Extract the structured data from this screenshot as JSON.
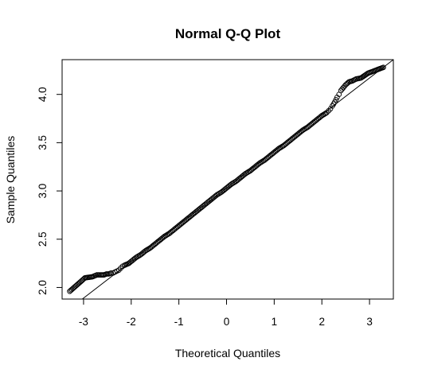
{
  "chart_data": {
    "type": "scatter",
    "title": "Normal Q-Q Plot",
    "xlabel": "Theoretical Quantiles",
    "ylabel": "Sample Quantiles",
    "xlim": [
      -3.45,
      3.5
    ],
    "ylim": [
      1.88,
      4.36
    ],
    "xticks": [
      "-3",
      "-2",
      "-1",
      "0",
      "1",
      "2",
      "3"
    ],
    "yticks": [
      "2.0",
      "2.5",
      "3.0",
      "3.5",
      "4.0"
    ],
    "reference_line": {
      "intercept": 3.03,
      "slope": 0.38
    },
    "n_points": 1000,
    "marker": "open-circle",
    "series": [
      {
        "points": [
          [
            -3.29,
            1.96
          ],
          [
            -2.97,
            2.1
          ],
          [
            -2.82,
            2.11
          ],
          [
            -2.72,
            2.13
          ],
          [
            -2.64,
            2.13
          ],
          [
            -2.57,
            2.13
          ],
          [
            -2.52,
            2.14
          ],
          [
            -2.47,
            2.14
          ],
          [
            -2.42,
            2.15
          ],
          [
            -2.38,
            2.15
          ],
          [
            -2.34,
            2.16
          ],
          [
            -2.3,
            2.17
          ],
          [
            -2.26,
            2.18
          ],
          [
            -2.22,
            2.2
          ],
          [
            -2.18,
            2.22
          ],
          [
            -2.14,
            2.23
          ],
          [
            -2.05,
            2.25
          ],
          [
            -2.0,
            2.27
          ],
          [
            -1.95,
            2.29
          ],
          [
            -1.9,
            2.31
          ],
          [
            -1.8,
            2.34
          ],
          [
            -1.7,
            2.38
          ],
          [
            -1.6,
            2.41
          ],
          [
            -1.5,
            2.45
          ],
          [
            -1.4,
            2.49
          ],
          [
            -1.3,
            2.53
          ],
          [
            -1.2,
            2.56
          ],
          [
            -1.1,
            2.6
          ],
          [
            -1.0,
            2.64
          ],
          [
            -0.9,
            2.68
          ],
          [
            -0.8,
            2.72
          ],
          [
            -0.7,
            2.76
          ],
          [
            -0.6,
            2.8
          ],
          [
            -0.5,
            2.84
          ],
          [
            -0.4,
            2.88
          ],
          [
            -0.3,
            2.92
          ],
          [
            -0.2,
            2.96
          ],
          [
            -0.1,
            2.99
          ],
          [
            0.0,
            3.03
          ],
          [
            0.1,
            3.07
          ],
          [
            0.2,
            3.1
          ],
          [
            0.3,
            3.14
          ],
          [
            0.4,
            3.18
          ],
          [
            0.5,
            3.21
          ],
          [
            0.6,
            3.25
          ],
          [
            0.7,
            3.29
          ],
          [
            0.8,
            3.32
          ],
          [
            0.9,
            3.36
          ],
          [
            1.0,
            3.4
          ],
          [
            1.1,
            3.44
          ],
          [
            1.2,
            3.47
          ],
          [
            1.3,
            3.51
          ],
          [
            1.4,
            3.55
          ],
          [
            1.5,
            3.59
          ],
          [
            1.6,
            3.63
          ],
          [
            1.7,
            3.66
          ],
          [
            1.8,
            3.7
          ],
          [
            1.9,
            3.74
          ],
          [
            2.0,
            3.78
          ],
          [
            2.1,
            3.81
          ],
          [
            2.14,
            3.83
          ],
          [
            2.18,
            3.85
          ],
          [
            2.22,
            3.88
          ],
          [
            2.27,
            3.92
          ],
          [
            2.32,
            3.97
          ],
          [
            2.36,
            4.0
          ],
          [
            2.4,
            4.04
          ],
          [
            2.45,
            4.07
          ],
          [
            2.5,
            4.1
          ],
          [
            2.57,
            4.13
          ],
          [
            2.64,
            4.14
          ],
          [
            2.72,
            4.16
          ],
          [
            2.82,
            4.17
          ],
          [
            2.97,
            4.22
          ],
          [
            3.29,
            4.28
          ]
        ]
      }
    ]
  }
}
